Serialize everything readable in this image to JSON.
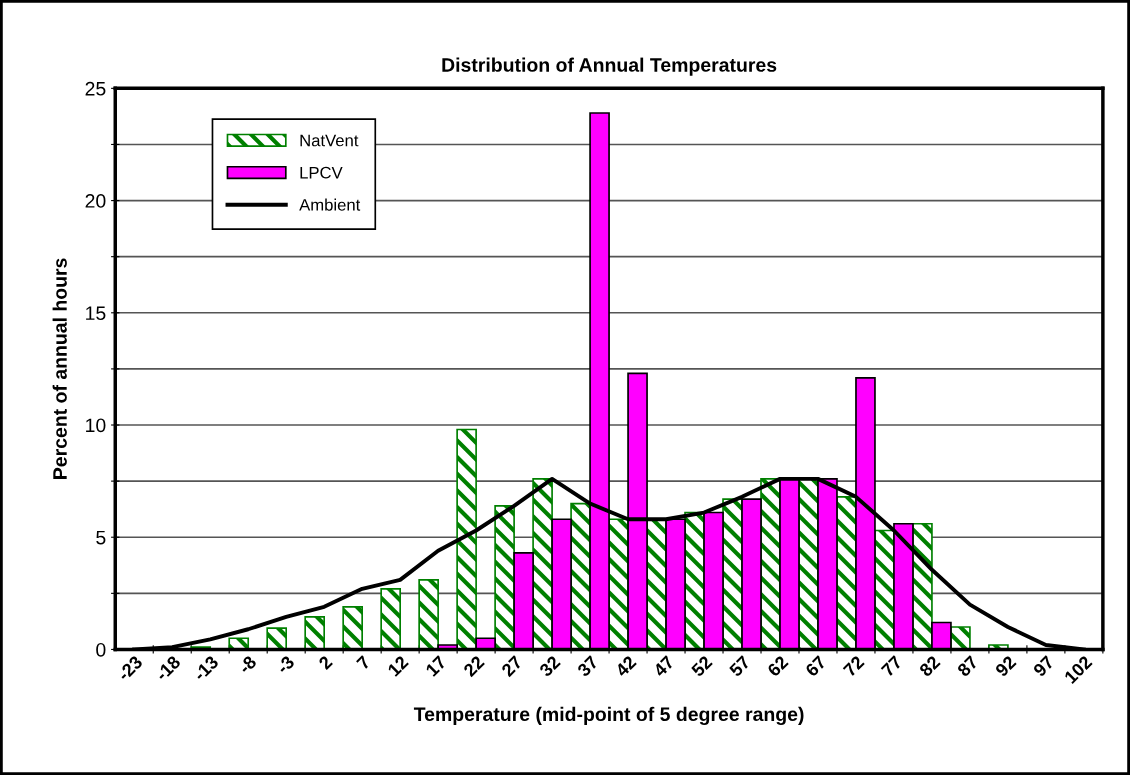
{
  "chart_data": {
    "type": "bar",
    "title": "Distribution of Annual Temperatures",
    "xlabel": "Temperature (mid-point of 5 degree range)",
    "ylabel": "Percent of annual hours",
    "categories": [
      "-23",
      "-18",
      "-13",
      "-8",
      "-3",
      "2",
      "7",
      "12",
      "17",
      "22",
      "27",
      "32",
      "37",
      "42",
      "47",
      "52",
      "57",
      "62",
      "67",
      "72",
      "77",
      "82",
      "87",
      "92",
      "97",
      "102"
    ],
    "series": [
      {
        "name": "NatVent",
        "color": "#008000",
        "values": [
          0,
          0,
          0.1,
          0.5,
          0.95,
          1.45,
          1.9,
          2.7,
          3.1,
          9.8,
          6.4,
          7.6,
          6.5,
          5.8,
          5.8,
          6.1,
          6.7,
          7.6,
          7.6,
          6.8,
          5.3,
          5.6,
          1.0,
          0.2,
          0,
          0
        ]
      },
      {
        "name": "LPCV",
        "color": "#ff00ff",
        "values": [
          0,
          0,
          0,
          0,
          0,
          0,
          0,
          0,
          0.2,
          0.5,
          4.3,
          5.8,
          23.9,
          12.3,
          5.8,
          6.1,
          6.7,
          7.6,
          7.6,
          12.1,
          5.6,
          1.2,
          0,
          0,
          0,
          0
        ]
      },
      {
        "name": "Ambient",
        "type": "line",
        "color": "#000000",
        "values": [
          0,
          0.1,
          0.45,
          0.9,
          1.45,
          1.9,
          2.7,
          3.1,
          4.4,
          5.3,
          6.4,
          7.6,
          6.5,
          5.8,
          5.8,
          6.1,
          6.8,
          7.6,
          7.6,
          6.8,
          5.3,
          3.55,
          2.0,
          1.0,
          0.2,
          0
        ]
      }
    ],
    "ylim": [
      0,
      25
    ],
    "yticks": [
      0,
      {
        "value": 2.5,
        "label": null
      },
      5,
      {
        "value": 7.5,
        "label": null
      },
      10,
      {
        "value": 12.5,
        "label": null
      },
      15,
      {
        "value": 17.5,
        "label": null
      },
      20,
      {
        "value": 22.5,
        "label": null
      },
      25
    ],
    "grid": "y",
    "legend": "top left",
    "marker": "none",
    "line_style": "solid"
  }
}
